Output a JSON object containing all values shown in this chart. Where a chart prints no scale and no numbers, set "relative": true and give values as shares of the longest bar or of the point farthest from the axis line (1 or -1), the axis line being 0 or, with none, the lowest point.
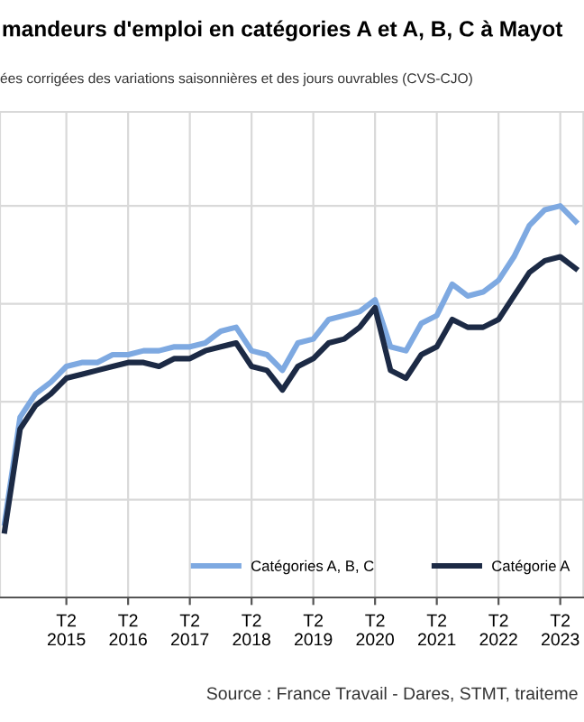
{
  "chart_data": {
    "type": "line",
    "title": "mandeurs d'emploi en catégories A et A, B, C à Mayot",
    "subtitle": "ées corrigées des variations saisonnières et des jours ouvrables (CVS-CJO)",
    "annotations": [
      "Source : France Travail - Dares, STMT, traiteme"
    ],
    "relative": true,
    "categories": [
      null,
      null,
      null,
      null,
      "T2\n2015",
      null,
      null,
      null,
      "T2\n2016",
      null,
      null,
      null,
      "T2\n2017",
      null,
      null,
      null,
      "T2\n2018",
      null,
      null,
      null,
      "T2\n2019",
      null,
      null,
      null,
      "T2\n2020",
      null,
      null,
      null,
      "T2\n2021",
      null,
      null,
      null,
      "T2\n2022",
      null,
      null,
      null,
      "T2\n2023",
      null
    ],
    "grid": true,
    "legend": "bottom right",
    "tick_labels": "x",
    "series": [
      {
        "name": "Catégories A, B, C",
        "color": "#7ea9e1",
        "values": [
          0.19,
          0.46,
          0.52,
          0.55,
          0.59,
          0.6,
          0.6,
          0.62,
          0.62,
          0.63,
          0.63,
          0.64,
          0.64,
          0.65,
          0.68,
          0.69,
          0.63,
          0.62,
          0.58,
          0.65,
          0.66,
          0.71,
          0.72,
          0.73,
          0.76,
          0.64,
          0.63,
          0.7,
          0.72,
          0.8,
          0.77,
          0.78,
          0.81,
          0.87,
          0.95,
          0.99,
          1,
          0.96
        ]
      },
      {
        "name": "Catégorie A",
        "color": "#1c2a45",
        "values": [
          0.17,
          0.43,
          0.49,
          0.52,
          0.56,
          0.57,
          0.58,
          0.59,
          0.6,
          0.6,
          0.59,
          0.61,
          0.61,
          0.63,
          0.64,
          0.65,
          0.59,
          0.58,
          0.53,
          0.59,
          0.61,
          0.65,
          0.66,
          0.69,
          0.74,
          0.58,
          0.56,
          0.62,
          0.64,
          0.71,
          0.69,
          0.69,
          0.71,
          0.77,
          0.83,
          0.86,
          0.87,
          0.84
        ]
      }
    ]
  }
}
